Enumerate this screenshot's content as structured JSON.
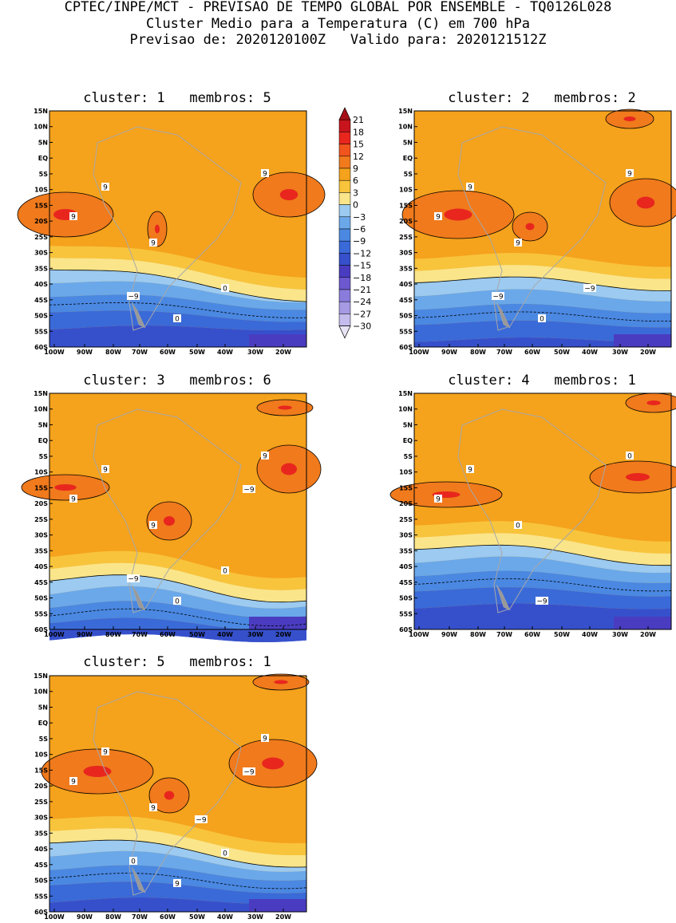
{
  "header": {
    "line1": "CPTEC/INPE/MCT - PREVISAO DE TEMPO GLOBAL POR ENSEMBLE - TQ0126L028",
    "line2": "Cluster Medio para a Temperatura (C) em 700 hPa",
    "line3": "Previsao de: 2020120100Z   Valido para: 2020121512Z"
  },
  "panels": [
    {
      "title": "cluster: 1   membros: 5",
      "labels": [
        "9",
        "9",
        "9",
        "9",
        "0",
        "0",
        "-9"
      ]
    },
    {
      "title": "cluster: 2   membros: 2",
      "labels": [
        "9",
        "9",
        "9",
        "9",
        "0",
        "-9",
        "-9"
      ]
    },
    {
      "title": "cluster: 3   membros: 6",
      "labels": [
        "9",
        "9",
        "9",
        "9",
        "0",
        "0",
        "-9",
        "-9"
      ]
    },
    {
      "title": "cluster: 4   membros: 1",
      "labels": [
        "9",
        "9",
        "0",
        "0",
        "-9"
      ]
    },
    {
      "title": "cluster: 5   membros: 1",
      "labels": [
        "9",
        "9",
        "9",
        "9",
        "9",
        "0",
        "0",
        "-9",
        "-9"
      ]
    }
  ],
  "axes": {
    "lat_ticks": [
      "15N",
      "10N",
      "5N",
      "EQ",
      "5S",
      "10S",
      "15S",
      "20S",
      "25S",
      "30S",
      "35S",
      "40S",
      "45S",
      "50S",
      "55S",
      "60S"
    ],
    "lon_ticks": [
      "100W",
      "90W",
      "80W",
      "70W",
      "60W",
      "50W",
      "40W",
      "30W",
      "20W"
    ]
  },
  "colorbar": {
    "labels": [
      "21",
      "18",
      "15",
      "12",
      "9",
      "6",
      "3",
      "0",
      "-3",
      "-6",
      "-9",
      "-12",
      "-15",
      "-18",
      "-21",
      "-24",
      "-27",
      "-30"
    ],
    "colors": [
      "#a50f15",
      "#c8141c",
      "#e8261e",
      "#f2541e",
      "#f07a1c",
      "#f5a21c",
      "#f8c43c",
      "#fae58a",
      "#9ccaf0",
      "#6aa8ea",
      "#4a88e2",
      "#3a6ad8",
      "#3650cc",
      "#4a3cc0",
      "#6e58d0",
      "#8a7cdc",
      "#a69ae4",
      "#c4bcec",
      "#e8e4f6"
    ]
  },
  "colors": {
    "warm9": "#f5a21c",
    "warm12": "#f07a1c",
    "warm15": "#e8261e",
    "band6": "#f8c43c",
    "band3": "#fae58a",
    "cool0": "#9ccaf0",
    "coolm3": "#6aa8ea",
    "coolm6": "#4a88e2",
    "coolm9": "#3a6ad8",
    "coolm12": "#3650cc",
    "coolm15": "#4a3cc0"
  }
}
